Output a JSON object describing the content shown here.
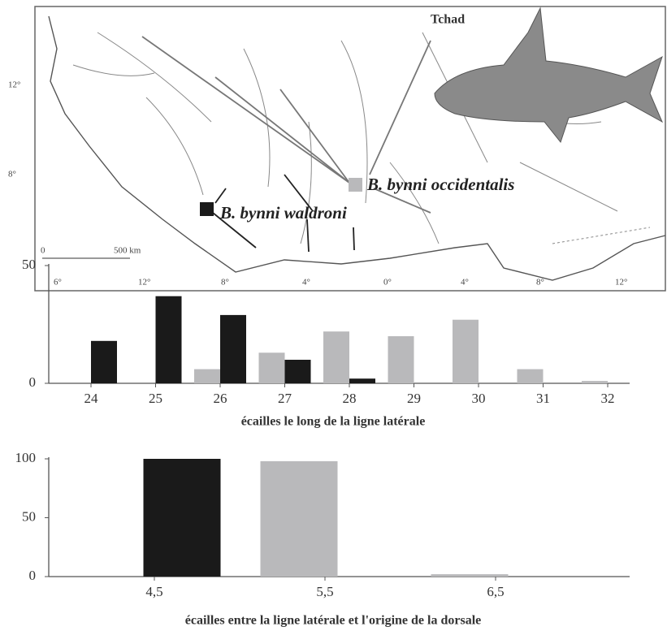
{
  "map": {
    "place": "Tchad",
    "lat_labels": [
      "12°",
      "8°"
    ],
    "lon_labels": [
      "6°",
      "12°",
      "8°",
      "4°",
      "0°",
      "4°",
      "8°",
      "12°"
    ],
    "scale": [
      "0",
      "500 km"
    ]
  },
  "chart_data": [
    {
      "type": "bar",
      "categories": [
        24,
        25,
        26,
        27,
        28,
        29,
        30,
        31,
        32
      ],
      "series": [
        {
          "name": "B. bynni waldroni",
          "color": "#1a1a1a",
          "values": [
            18,
            37,
            29,
            10,
            2,
            0,
            0,
            0,
            0
          ]
        },
        {
          "name": "B. bynni occidentalis",
          "color": "#b9b9bb",
          "values": [
            0,
            0,
            6,
            13,
            22,
            20,
            27,
            6,
            1
          ]
        }
      ],
      "ylim": [
        0,
        50
      ],
      "yticks": [
        0,
        50
      ],
      "x_label": "écailles le long de la ligne latérale"
    },
    {
      "type": "bar",
      "categories": [
        "4,5",
        "5,5",
        "6,5"
      ],
      "series": [
        {
          "color": "#1a1a1a",
          "values": [
            100,
            0,
            0
          ]
        },
        {
          "color": "#b9b9bb",
          "values": [
            0,
            98,
            2
          ]
        }
      ],
      "ylim": [
        0,
        100
      ],
      "yticks": [
        0,
        50,
        100
      ],
      "x_label": "écailles entre la ligne latérale et l'origine de la dorsale"
    }
  ]
}
